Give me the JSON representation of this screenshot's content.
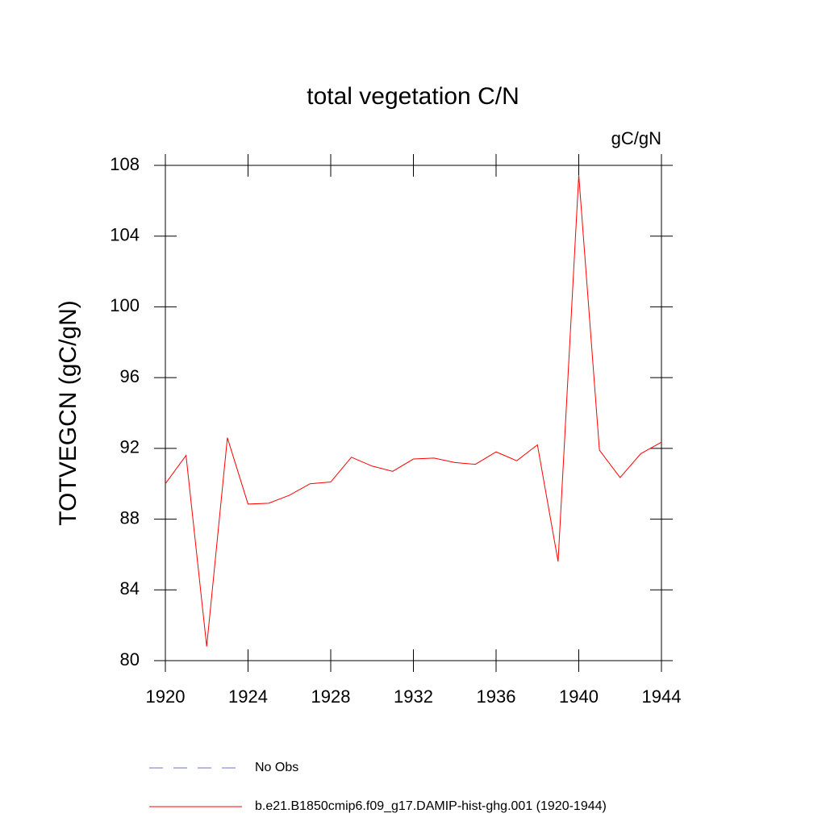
{
  "chart_data": {
    "type": "line",
    "title": "total vegetation C/N",
    "units": "gC/gN",
    "y_label": "TOTVEGCN  (gC/gN)",
    "x": [
      1920,
      1921,
      1922,
      1923,
      1924,
      1925,
      1926,
      1927,
      1928,
      1929,
      1930,
      1931,
      1932,
      1933,
      1934,
      1935,
      1936,
      1937,
      1938,
      1939,
      1940,
      1941,
      1942,
      1943,
      1944
    ],
    "series": [
      {
        "name": "b.e21.B1850cmip6.f09_g17.DAMIP-hist-ghg.001 (1920-1944)",
        "color": "#ff0000",
        "values": [
          90.0,
          91.6,
          80.8,
          92.6,
          88.85,
          88.9,
          89.35,
          90.0,
          90.1,
          91.5,
          91.0,
          90.7,
          91.4,
          91.45,
          91.2,
          91.1,
          91.8,
          91.3,
          92.2,
          85.6,
          107.45,
          91.9,
          90.35,
          91.7,
          92.35
        ]
      }
    ],
    "reference_lines": [
      {
        "name": "No Obs",
        "color": "#7070c8",
        "style": "dashed"
      }
    ],
    "xlim": [
      1920,
      1944
    ],
    "xticks": [
      1920,
      1924,
      1928,
      1932,
      1936,
      1940,
      1944
    ],
    "ylim": [
      80,
      108
    ],
    "yticks": [
      80,
      84,
      88,
      92,
      96,
      100,
      104,
      108
    ],
    "grid": false
  }
}
